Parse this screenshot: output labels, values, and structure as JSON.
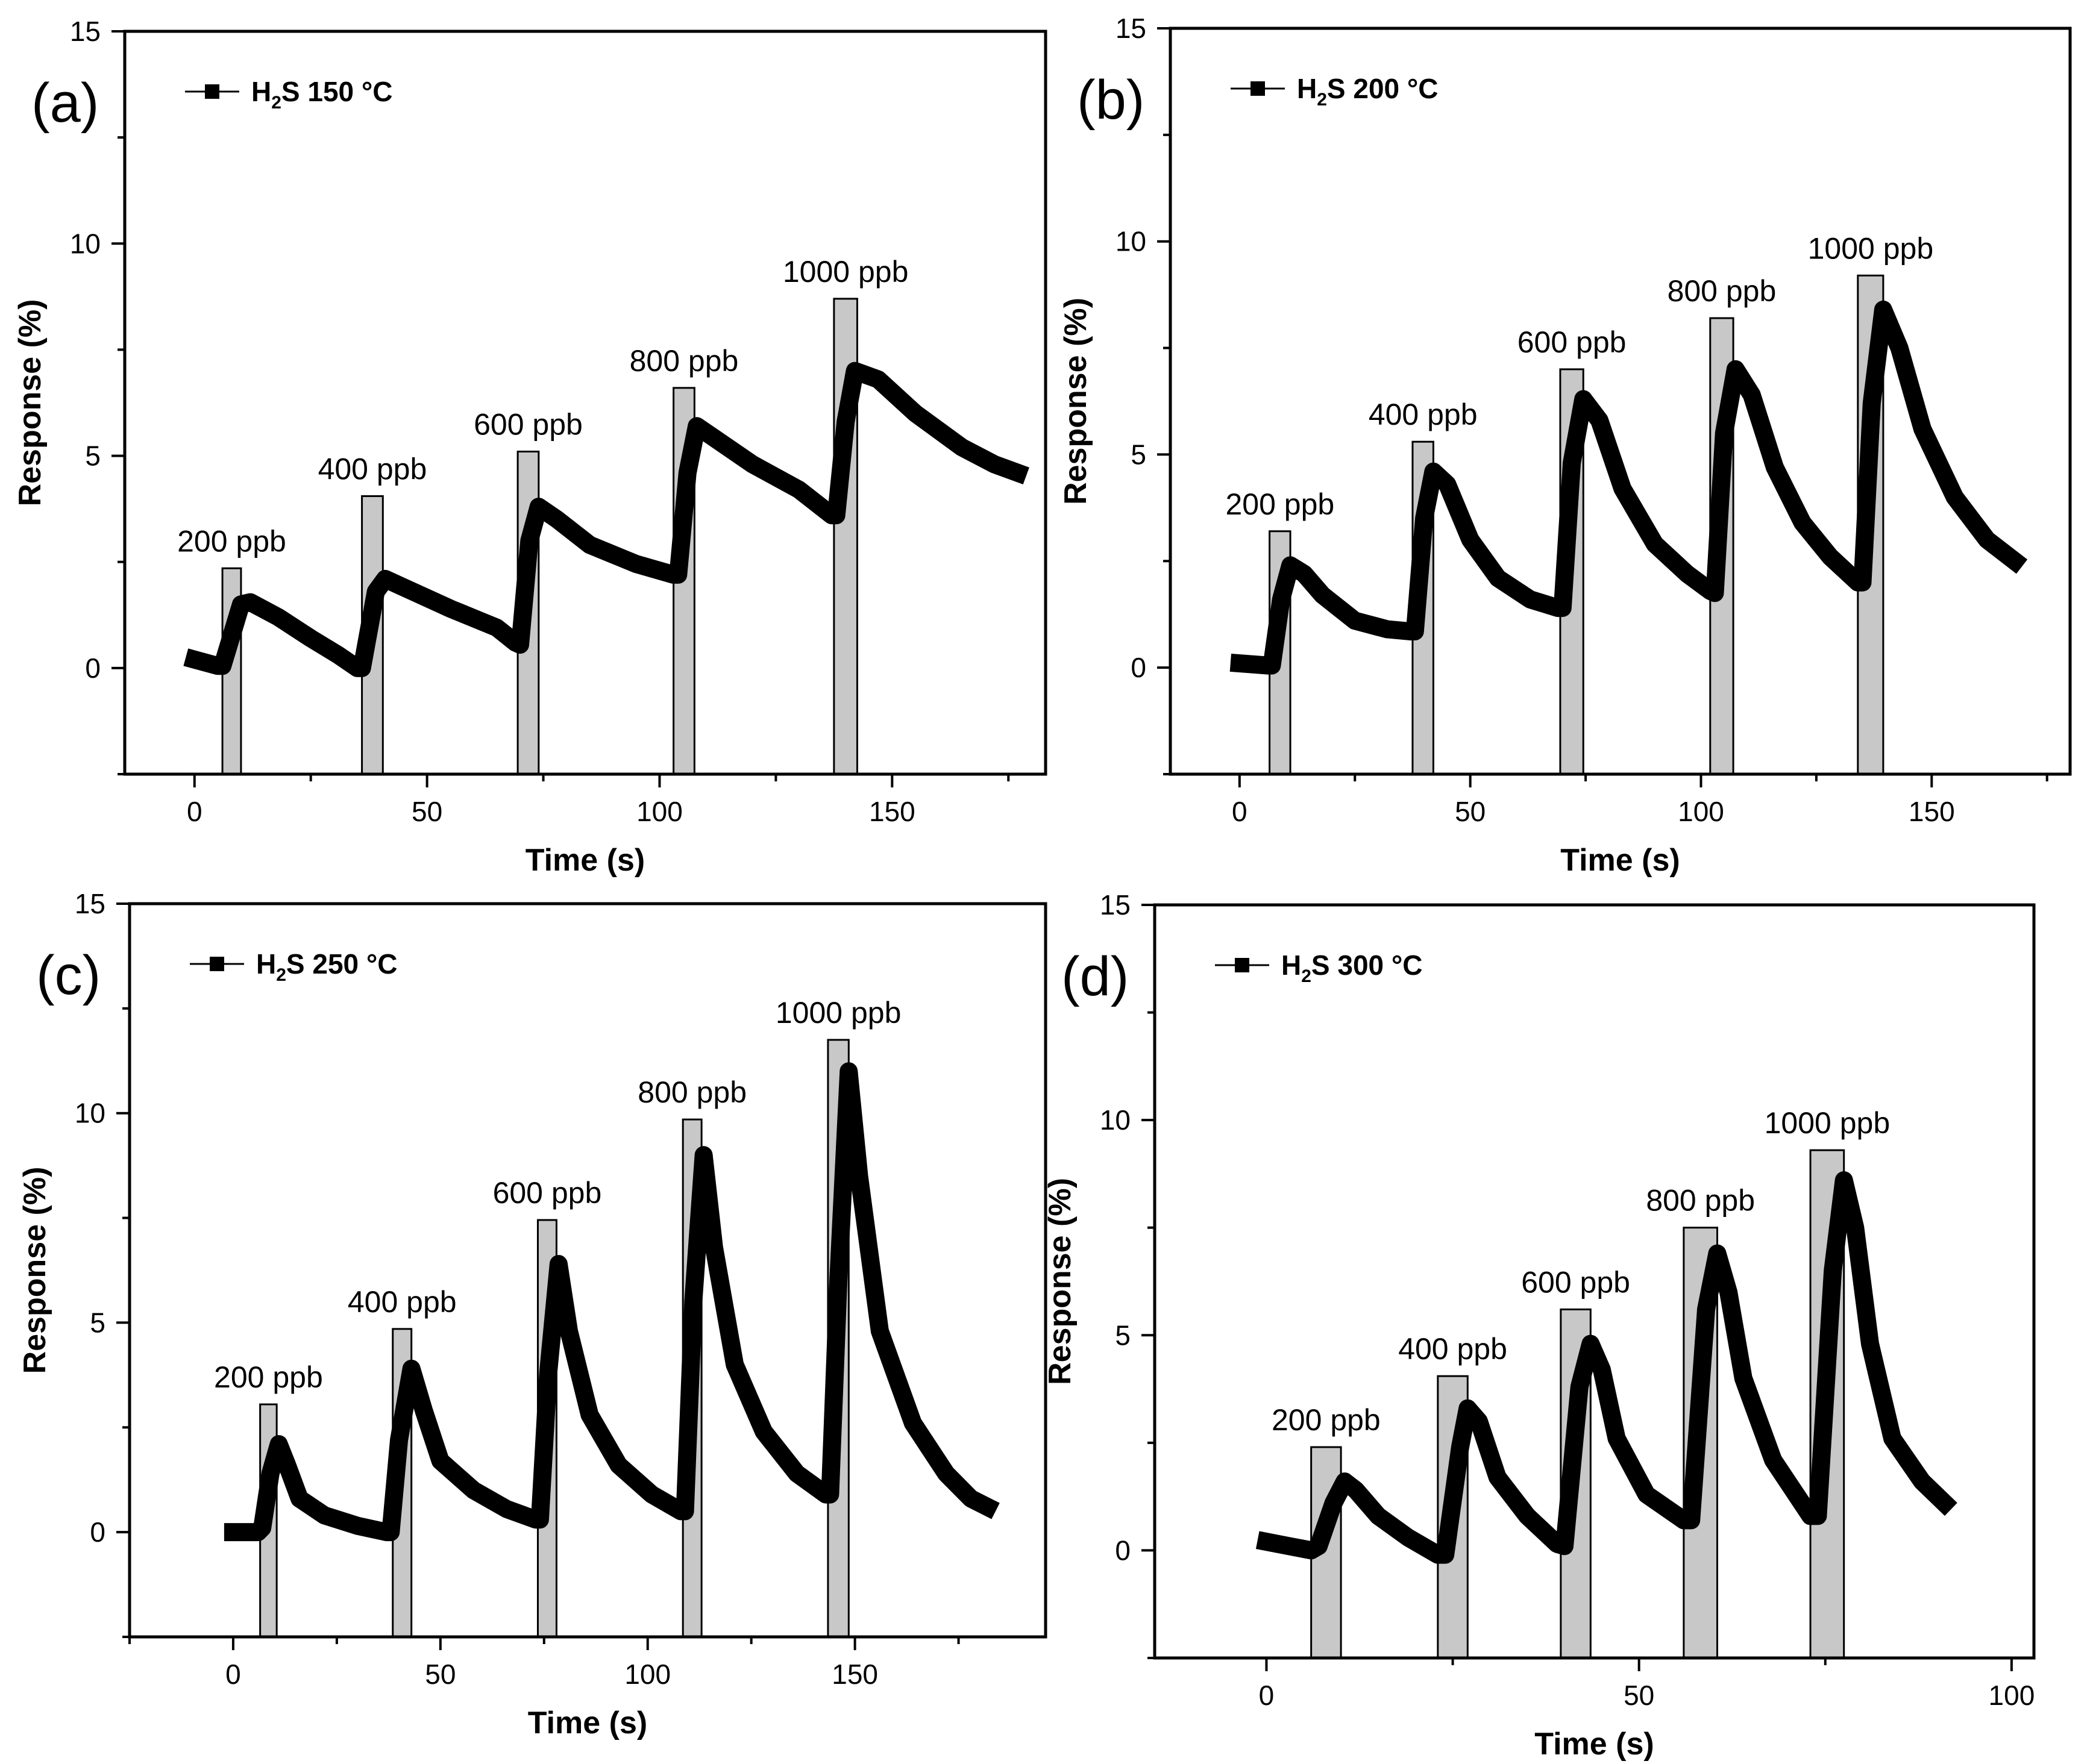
{
  "colors": {
    "pulse_fill": "#c8c8c8",
    "line": "#000000",
    "axis": "#000000"
  },
  "chart_data": [
    {
      "type": "line",
      "panel_label": "(a)",
      "legend": {
        "prefix": "H",
        "sub": "2",
        "suffix": "S 150 °C"
      },
      "xlabel": "Time (s)",
      "ylabel": "Response (%)",
      "xlim": [
        -15,
        183
      ],
      "ylim": [
        -2.5,
        15
      ],
      "xticks": [
        0,
        50,
        100,
        150
      ],
      "yticks": [
        0,
        5,
        10,
        15
      ],
      "pulses": [
        {
          "label": "200 ppb",
          "x0": 6,
          "x1": 10,
          "height": 2.35
        },
        {
          "label": "400 ppb",
          "x0": 36,
          "x1": 40.5,
          "height": 4.05
        },
        {
          "label": "600 ppb",
          "x0": 69.5,
          "x1": 74,
          "height": 5.1
        },
        {
          "label": "800 ppb",
          "x0": 103,
          "x1": 107.5,
          "height": 6.6
        },
        {
          "label": "1000 ppb",
          "x0": 137.5,
          "x1": 142.5,
          "height": 8.7
        }
      ],
      "series": [
        {
          "name": "H2S 150 °C",
          "points": [
            [
              0,
              0.2
            ],
            [
              5,
              0.05
            ],
            [
              6,
              0.05
            ],
            [
              10,
              1.5
            ],
            [
              12,
              1.55
            ],
            [
              18,
              1.2
            ],
            [
              25,
              0.7
            ],
            [
              31,
              0.3
            ],
            [
              35,
              0
            ],
            [
              36,
              0
            ],
            [
              39,
              1.8
            ],
            [
              41,
              2.1
            ],
            [
              45,
              1.9
            ],
            [
              55,
              1.4
            ],
            [
              65,
              0.95
            ],
            [
              69,
              0.6
            ],
            [
              70,
              0.55
            ],
            [
              72,
              3.0
            ],
            [
              74,
              3.8
            ],
            [
              78,
              3.5
            ],
            [
              85,
              2.9
            ],
            [
              95,
              2.45
            ],
            [
              103,
              2.2
            ],
            [
              104,
              2.2
            ],
            [
              106,
              4.6
            ],
            [
              108,
              5.7
            ],
            [
              112,
              5.4
            ],
            [
              120,
              4.8
            ],
            [
              130,
              4.2
            ],
            [
              137,
              3.6
            ],
            [
              138,
              3.6
            ],
            [
              140,
              5.8
            ],
            [
              142,
              7.0
            ],
            [
              147,
              6.8
            ],
            [
              155,
              6.0
            ],
            [
              165,
              5.2
            ],
            [
              172,
              4.8
            ],
            [
              177,
              4.6
            ]
          ]
        }
      ]
    },
    {
      "type": "line",
      "panel_label": "(b)",
      "legend": {
        "prefix": "H",
        "sub": "2",
        "suffix": "S 200 °C"
      },
      "xlabel": "Time (s)",
      "ylabel": "Response (%)",
      "xlim": [
        -15,
        180
      ],
      "ylim": [
        -2.5,
        15
      ],
      "xticks": [
        0,
        50,
        100,
        150
      ],
      "yticks": [
        0,
        5,
        10,
        15
      ],
      "pulses": [
        {
          "label": "200 ppb",
          "x0": 6.5,
          "x1": 11,
          "height": 3.2
        },
        {
          "label": "400 ppb",
          "x0": 37.5,
          "x1": 42,
          "height": 5.3
        },
        {
          "label": "600 ppb",
          "x0": 69.5,
          "x1": 74.5,
          "height": 7.0
        },
        {
          "label": "800 ppb",
          "x0": 102,
          "x1": 107,
          "height": 8.2
        },
        {
          "label": "1000 ppb",
          "x0": 134,
          "x1": 139.5,
          "height": 9.2
        }
      ],
      "series": [
        {
          "name": "H2S 200 °C",
          "points": [
            [
              0,
              0.1
            ],
            [
              6,
              0.05
            ],
            [
              7,
              0.05
            ],
            [
              9,
              1.6
            ],
            [
              11,
              2.4
            ],
            [
              14,
              2.2
            ],
            [
              18,
              1.7
            ],
            [
              25,
              1.1
            ],
            [
              32,
              0.9
            ],
            [
              37,
              0.85
            ],
            [
              38,
              0.85
            ],
            [
              40,
              3.5
            ],
            [
              42,
              4.6
            ],
            [
              45,
              4.3
            ],
            [
              50,
              3.0
            ],
            [
              56,
              2.1
            ],
            [
              63,
              1.6
            ],
            [
              69,
              1.4
            ],
            [
              70,
              1.4
            ],
            [
              72,
              4.8
            ],
            [
              74.5,
              6.3
            ],
            [
              78,
              5.8
            ],
            [
              83,
              4.2
            ],
            [
              90,
              2.9
            ],
            [
              97,
              2.2
            ],
            [
              102,
              1.8
            ],
            [
              103,
              1.75
            ],
            [
              105,
              5.5
            ],
            [
              107.5,
              7.0
            ],
            [
              111,
              6.4
            ],
            [
              116,
              4.7
            ],
            [
              122,
              3.4
            ],
            [
              128,
              2.6
            ],
            [
              134,
              2.0
            ],
            [
              135,
              2.0
            ],
            [
              137,
              6.2
            ],
            [
              139.5,
              8.4
            ],
            [
              143,
              7.5
            ],
            [
              148,
              5.6
            ],
            [
              155,
              4.0
            ],
            [
              162,
              3.0
            ],
            [
              168,
              2.5
            ]
          ]
        }
      ]
    },
    {
      "type": "line",
      "panel_label": "(c)",
      "legend": {
        "prefix": "H",
        "sub": "2",
        "suffix": "S 250 °C"
      },
      "xlabel": "Time (s)",
      "ylabel": "Response (%)",
      "xlim": [
        -25,
        196
      ],
      "ylim": [
        -2.5,
        15
      ],
      "xticks": [
        0,
        50,
        100,
        150
      ],
      "yticks": [
        0,
        5,
        10,
        15
      ],
      "pulses": [
        {
          "label": "200 ppb",
          "x0": 6.5,
          "x1": 10.5,
          "height": 3.05
        },
        {
          "label": "400 ppb",
          "x0": 38.5,
          "x1": 43,
          "height": 4.85
        },
        {
          "label": "600 ppb",
          "x0": 73.5,
          "x1": 78,
          "height": 7.45
        },
        {
          "label": "800 ppb",
          "x0": 108.5,
          "x1": 113,
          "height": 9.85
        },
        {
          "label": "1000 ppb",
          "x0": 143.5,
          "x1": 148.5,
          "height": 11.75
        }
      ],
      "series": [
        {
          "name": "H2S 250 °C",
          "points": [
            [
              0,
              0
            ],
            [
              6,
              0
            ],
            [
              7,
              0.1
            ],
            [
              9,
              1.4
            ],
            [
              11,
              2.1
            ],
            [
              13,
              1.6
            ],
            [
              16,
              0.8
            ],
            [
              22,
              0.4
            ],
            [
              30,
              0.15
            ],
            [
              37,
              0
            ],
            [
              38,
              0
            ],
            [
              40,
              2.2
            ],
            [
              43,
              3.9
            ],
            [
              46,
              2.9
            ],
            [
              50,
              1.7
            ],
            [
              58,
              1.0
            ],
            [
              66,
              0.55
            ],
            [
              73,
              0.3
            ],
            [
              74,
              0.3
            ],
            [
              76,
              3.8
            ],
            [
              78.5,
              6.4
            ],
            [
              81,
              4.8
            ],
            [
              86,
              2.8
            ],
            [
              93,
              1.6
            ],
            [
              101,
              0.9
            ],
            [
              108,
              0.5
            ],
            [
              109,
              0.5
            ],
            [
              111,
              5.5
            ],
            [
              113.5,
              9.0
            ],
            [
              116,
              6.8
            ],
            [
              121,
              4.0
            ],
            [
              128,
              2.4
            ],
            [
              136,
              1.4
            ],
            [
              143,
              0.9
            ],
            [
              144,
              0.9
            ],
            [
              146,
              6.0
            ],
            [
              148.5,
              11.0
            ],
            [
              151,
              8.5
            ],
            [
              156,
              4.8
            ],
            [
              164,
              2.6
            ],
            [
              172,
              1.4
            ],
            [
              178,
              0.8
            ],
            [
              182,
              0.6
            ]
          ]
        }
      ]
    },
    {
      "type": "line",
      "panel_label": "(d)",
      "legend": {
        "prefix": "H",
        "sub": "2",
        "suffix": "S 300 °C"
      },
      "xlabel": "Time (s)",
      "ylabel": "Response (%)",
      "xlim": [
        -15,
        103
      ],
      "ylim": [
        -2.5,
        15
      ],
      "xticks": [
        0,
        50,
        100
      ],
      "yticks": [
        0,
        5,
        10,
        15
      ],
      "pulses": [
        {
          "label": "200 ppb",
          "x0": 6,
          "x1": 10,
          "height": 2.4
        },
        {
          "label": "400 ppb",
          "x0": 23,
          "x1": 27,
          "height": 4.05
        },
        {
          "label": "600 ppb",
          "x0": 39.5,
          "x1": 43.5,
          "height": 5.6
        },
        {
          "label": "800 ppb",
          "x0": 56,
          "x1": 60.5,
          "height": 7.5
        },
        {
          "label": "1000 ppb",
          "x0": 73,
          "x1": 77.5,
          "height": 9.3
        }
      ],
      "series": [
        {
          "name": "H2S 300 °C",
          "points": [
            [
              0,
              0.2
            ],
            [
              3,
              0.1
            ],
            [
              6,
              0
            ],
            [
              7,
              0.1
            ],
            [
              9,
              1.1
            ],
            [
              10.5,
              1.6
            ],
            [
              12,
              1.4
            ],
            [
              15,
              0.8
            ],
            [
              19,
              0.3
            ],
            [
              23,
              -0.1
            ],
            [
              24,
              -0.1
            ],
            [
              26,
              2.4
            ],
            [
              27,
              3.3
            ],
            [
              28.5,
              3.0
            ],
            [
              31,
              1.7
            ],
            [
              35,
              0.8
            ],
            [
              39,
              0.15
            ],
            [
              40,
              0.1
            ],
            [
              42,
              3.8
            ],
            [
              43.5,
              4.8
            ],
            [
              45,
              4.2
            ],
            [
              47,
              2.6
            ],
            [
              51,
              1.3
            ],
            [
              56,
              0.7
            ],
            [
              57,
              0.7
            ],
            [
              59,
              5.6
            ],
            [
              60.5,
              6.9
            ],
            [
              62,
              6.0
            ],
            [
              64,
              4.0
            ],
            [
              68,
              2.1
            ],
            [
              73,
              0.8
            ],
            [
              74,
              0.8
            ],
            [
              76,
              6.5
            ],
            [
              77.5,
              8.6
            ],
            [
              79,
              7.5
            ],
            [
              81,
              4.8
            ],
            [
              84,
              2.6
            ],
            [
              88,
              1.6
            ],
            [
              91,
              1.1
            ]
          ]
        }
      ]
    }
  ]
}
